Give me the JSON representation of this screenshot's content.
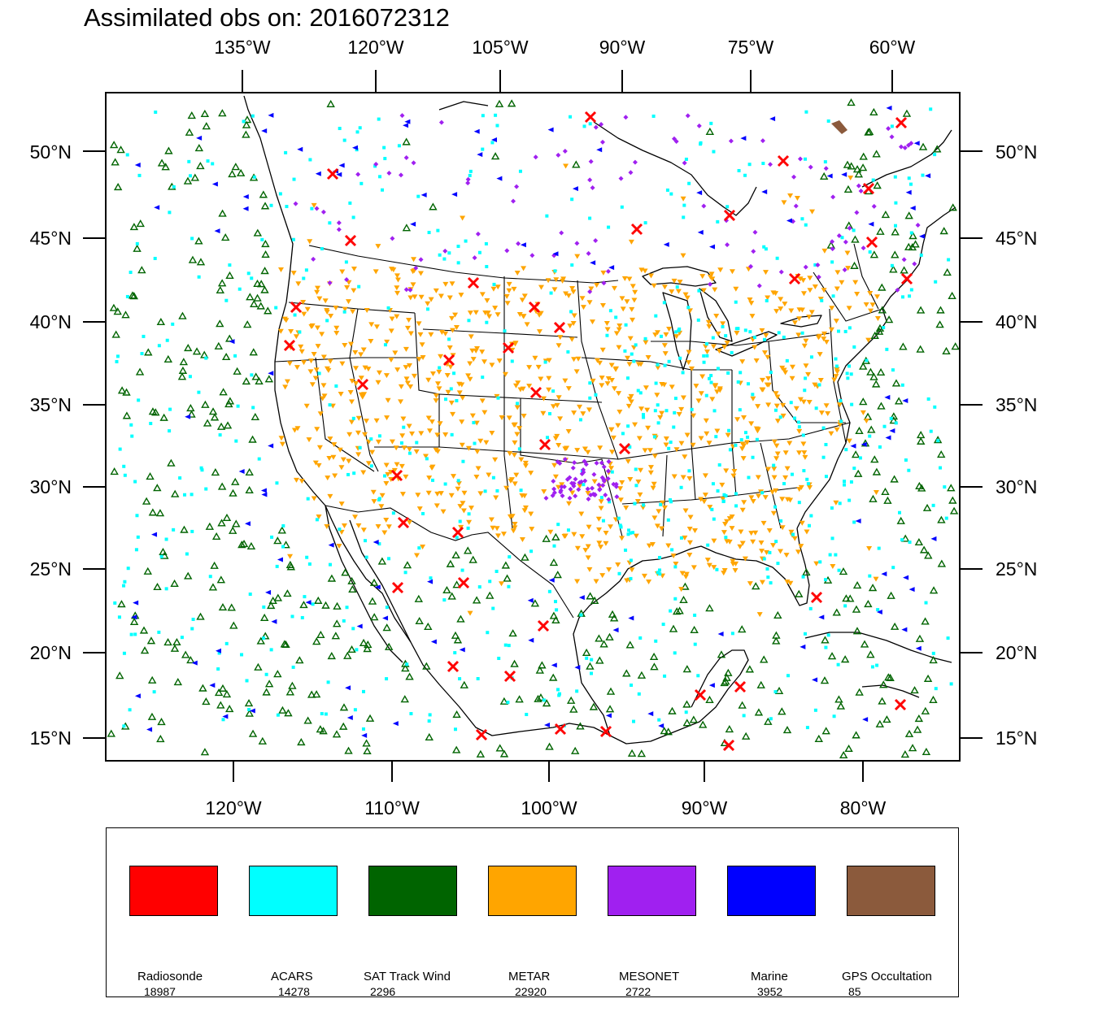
{
  "title": "Assimilated obs on: 2016072312",
  "map": {
    "top_lon_labels": [
      "135°W",
      "120°W",
      "105°W",
      "90°W",
      "75°W",
      "60°W"
    ],
    "bottom_lon_labels": [
      "120°W",
      "110°W",
      "100°W",
      "90°W",
      "80°W"
    ],
    "lat_labels": [
      "50°N",
      "45°N",
      "40°N",
      "35°N",
      "30°N",
      "25°N",
      "20°N",
      "15°N"
    ]
  },
  "legend": {
    "items": [
      {
        "label": "Radiosonde",
        "count": "18987",
        "color": "#ff0000"
      },
      {
        "label": "ACARS",
        "count": "14278",
        "color": "#00ffff"
      },
      {
        "label": "SAT Track Wind",
        "count": "2296",
        "color": "#006400"
      },
      {
        "label": "METAR",
        "count": "22920",
        "color": "#ffa500"
      },
      {
        "label": "MESONET",
        "count": "2722",
        "color": "#a020f0"
      },
      {
        "label": "Marine",
        "count": "3952",
        "color": "#0000ff"
      },
      {
        "label": "GPS Occultation",
        "count": "85",
        "color": "#8b5a3c"
      }
    ]
  },
  "colors": {
    "radiosonde": "#ff0000",
    "acars": "#00ffff",
    "sat_track_wind": "#006400",
    "metar": "#ffa500",
    "mesonet": "#a020f0",
    "marine": "#0000ff",
    "gps_occultation": "#8b5a3c"
  },
  "icons": {
    "radiosonde": "red-x-icon",
    "acars": "cyan-square-icon",
    "sat_track_wind": "green-triangle-icon",
    "metar": "orange-down-triangle-icon",
    "mesonet": "purple-diamond-icon",
    "marine": "blue-left-triangle-icon",
    "gps_occultation": "brown-bar-icon"
  }
}
